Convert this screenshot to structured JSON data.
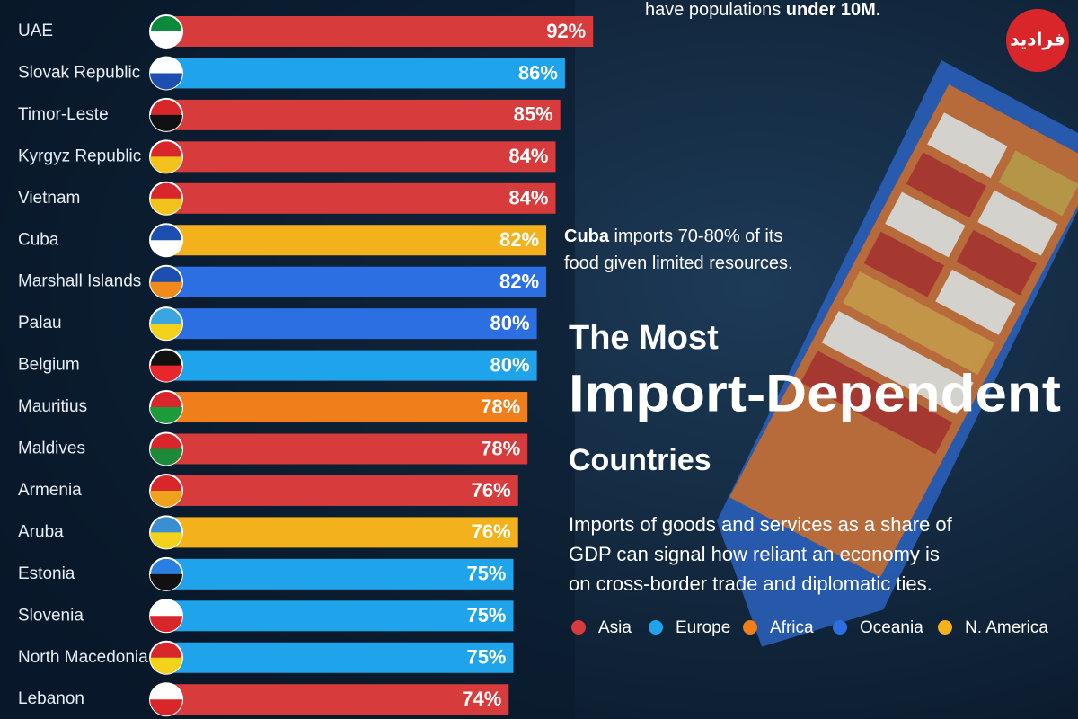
{
  "chart_data": {
    "type": "bar",
    "orientation": "horizontal",
    "categories": [
      "UAE",
      "Slovak Republic",
      "Timor-Leste",
      "Kyrgyz Republic",
      "Vietnam",
      "Cuba",
      "Marshall Islands",
      "Palau",
      "Belgium",
      "Mauritius",
      "Maldives",
      "Armenia",
      "Aruba",
      "Estonia",
      "Slovenia",
      "North Macedonia",
      "Lebanon"
    ],
    "series": [
      {
        "name": "Asia",
        "color": "#d83b3b",
        "values": [
          92,
          null,
          85,
          84,
          84,
          null,
          null,
          null,
          null,
          null,
          78,
          76,
          null,
          null,
          null,
          null,
          74
        ],
        "value_labels": [
          "92%",
          null,
          "85%",
          "84%",
          "84%",
          null,
          null,
          null,
          null,
          null,
          "78%",
          "76%",
          null,
          null,
          null,
          null,
          "74%"
        ]
      },
      {
        "name": "Europe",
        "color": "#1fa3ea",
        "values": [
          null,
          86,
          null,
          null,
          null,
          null,
          null,
          null,
          80,
          null,
          null,
          null,
          null,
          75,
          75,
          75,
          null
        ],
        "value_labels": [
          null,
          "86%",
          null,
          null,
          null,
          null,
          null,
          null,
          "80%",
          null,
          null,
          null,
          null,
          "75%",
          "75%",
          "75%",
          null
        ]
      },
      {
        "name": "Africa",
        "color": "#f07e1b",
        "values": [
          null,
          null,
          null,
          null,
          null,
          null,
          null,
          null,
          null,
          78,
          null,
          null,
          null,
          null,
          null,
          null,
          null
        ],
        "value_labels": [
          null,
          null,
          null,
          null,
          null,
          null,
          null,
          null,
          null,
          "78%",
          null,
          null,
          null,
          null,
          null,
          null,
          null
        ]
      },
      {
        "name": "Oceania",
        "color": "#2c6fe3",
        "values": [
          null,
          null,
          null,
          null,
          null,
          null,
          82,
          80,
          null,
          null,
          null,
          null,
          null,
          null,
          null,
          null,
          null
        ],
        "value_labels": [
          null,
          null,
          null,
          null,
          null,
          null,
          "82%",
          "80%",
          null,
          null,
          null,
          null,
          null,
          null,
          null,
          null,
          null
        ]
      },
      {
        "name": "N. America",
        "color": "#f3b21c",
        "values": [
          null,
          null,
          null,
          null,
          null,
          82,
          null,
          null,
          null,
          null,
          null,
          null,
          76,
          null,
          null,
          null,
          null
        ],
        "value_labels": [
          null,
          null,
          null,
          null,
          null,
          "82%",
          null,
          null,
          null,
          null,
          null,
          null,
          "76%",
          null,
          null,
          null,
          null
        ]
      }
    ],
    "title_lines": [
      "The Most",
      "Import-Dependent",
      "Countries"
    ],
    "subtitle_lines": [
      "Imports of goods and services as a share of",
      "GDP can signal how reliant an economy is",
      "on cross-border trade and diplomatic ties."
    ],
    "top_note": [
      {
        "text": "have populations ",
        "bold": false
      },
      {
        "text": "under 10M.",
        "bold": true
      }
    ],
    "cuba_note": [
      [
        {
          "text": "Cuba",
          "bold": true
        },
        {
          "text": " imports 70-80% of its",
          "bold": false
        }
      ],
      [
        {
          "text": "food given limited resources.",
          "bold": false
        }
      ]
    ],
    "watermark": "فرادید"
  }
}
